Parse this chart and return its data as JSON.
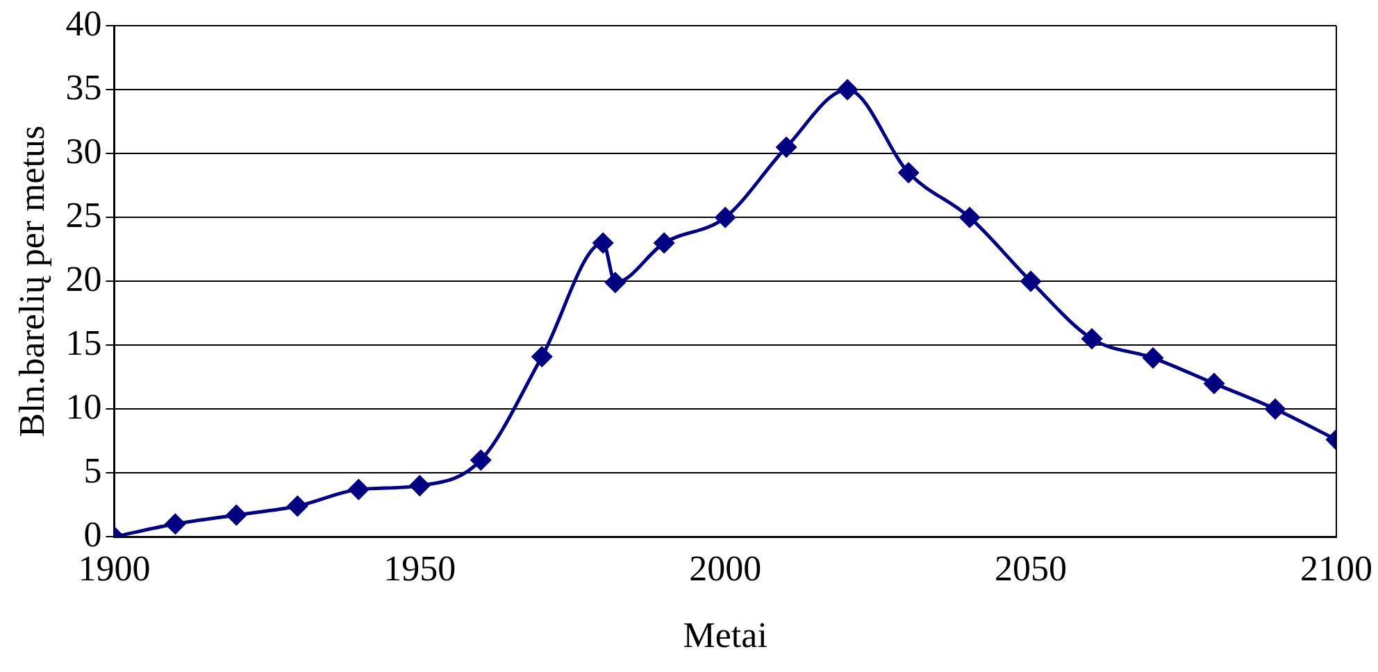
{
  "chart_data": {
    "type": "line",
    "xlabel": "Metai",
    "ylabel": "Bln.barelių per metus",
    "x": [
      1900,
      1910,
      1920,
      1930,
      1940,
      1950,
      1960,
      1970,
      1980,
      1982,
      1990,
      2000,
      2010,
      2020,
      2030,
      2040,
      2050,
      2060,
      2070,
      2080,
      2090,
      2100
    ],
    "series": [
      {
        "color": "#000080",
        "values": [
          0,
          1,
          1.7,
          2.4,
          3.7,
          4,
          6,
          14.1,
          23,
          19.9,
          23,
          25,
          30.5,
          35,
          28.5,
          25,
          20,
          15.5,
          14,
          12,
          10,
          7.6
        ]
      }
    ],
    "xlim": [
      1900,
      2100
    ],
    "xticks": [
      1900,
      1950,
      2000,
      2050,
      2100
    ],
    "ylim": [
      0,
      40
    ],
    "yticks": [
      0,
      5,
      10,
      15,
      20,
      25,
      30,
      35,
      40
    ],
    "grid": "y",
    "marker": "diamond",
    "line_style": "solid",
    "legend": false
  }
}
